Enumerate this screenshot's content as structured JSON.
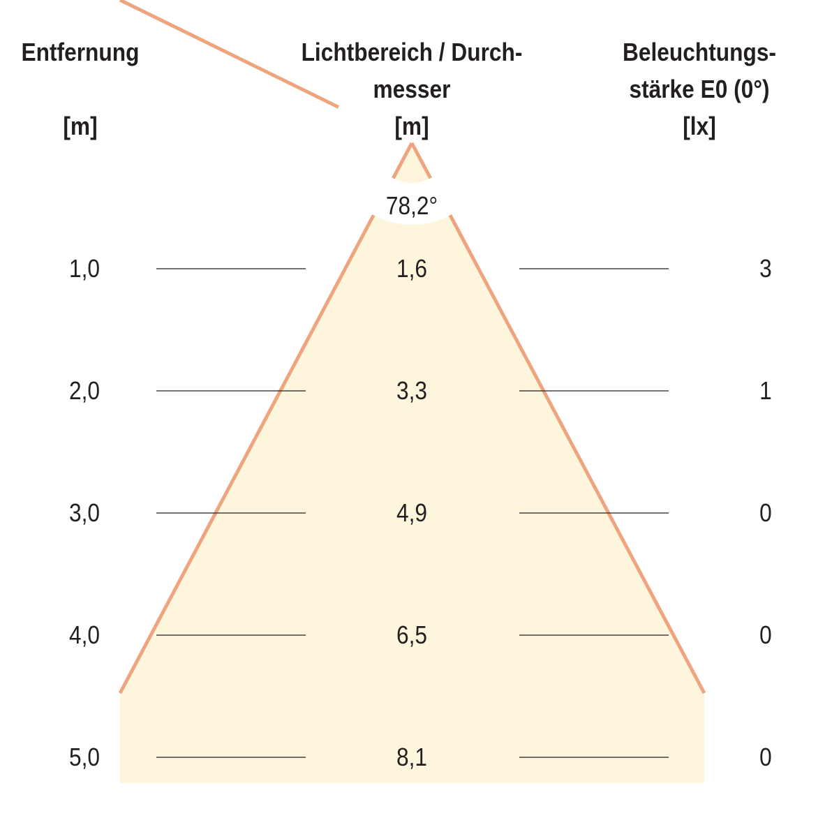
{
  "headers": {
    "distance": {
      "line1": "Entfernung",
      "unit": "[m]"
    },
    "diameter": {
      "line1": "Lichtbereich / Durch-",
      "line2": "messer",
      "unit": "[m]"
    },
    "illuminance": {
      "line1": "Beleuchtungs-",
      "line2": "stärke E0 (0°)",
      "unit": "[lx]"
    }
  },
  "beam_angle": "78,2°",
  "rows": [
    {
      "distance": "1,0",
      "diameter": "1,6",
      "illuminance": "3"
    },
    {
      "distance": "2,0",
      "diameter": "3,3",
      "illuminance": "1"
    },
    {
      "distance": "3,0",
      "diameter": "4,9",
      "illuminance": "0"
    },
    {
      "distance": "4,0",
      "diameter": "6,5",
      "illuminance": "0"
    },
    {
      "distance": "5,0",
      "diameter": "8,1",
      "illuminance": "0"
    }
  ],
  "colors": {
    "cone_fill": "#fdf6dc",
    "cone_edge": "#eda47f",
    "text": "#231f20"
  }
}
